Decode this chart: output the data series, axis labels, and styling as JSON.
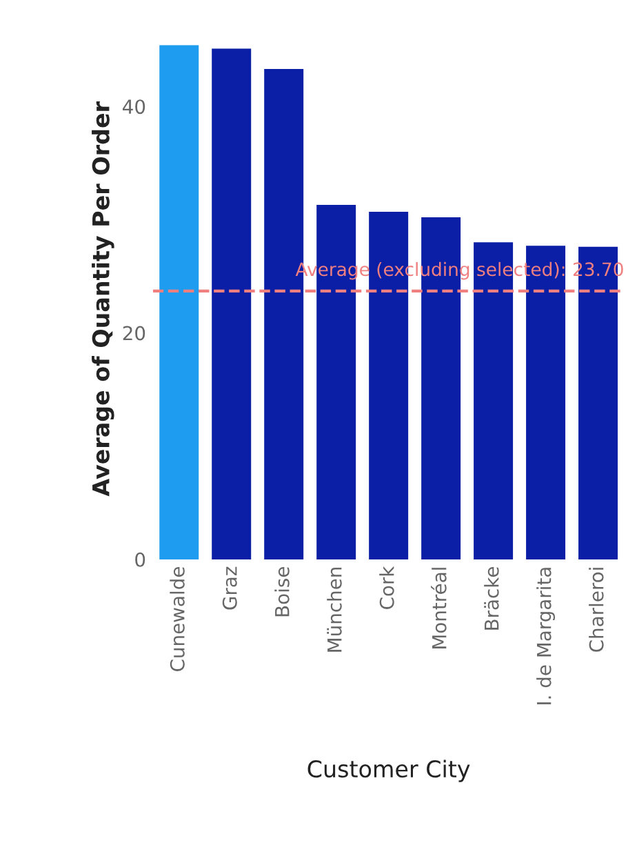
{
  "chart_data": {
    "type": "bar",
    "xlabel": "Customer City",
    "ylabel": "Average of Quantity Per Order",
    "categories": [
      "Cunewalde",
      "Graz",
      "Boise",
      "München",
      "Cork",
      "Montréal",
      "Bräcke",
      "I. de Margarita",
      "Charleroi"
    ],
    "values": [
      45.4,
      45.1,
      43.3,
      31.3,
      30.7,
      30.2,
      28.0,
      27.7,
      27.6
    ],
    "colors": [
      "#1e9cf0",
      "#0b1fa6",
      "#0b1fa6",
      "#0b1fa6",
      "#0b1fa6",
      "#0b1fa6",
      "#0b1fa6",
      "#0b1fa6",
      "#0b1fa6"
    ],
    "ylim": [
      0,
      46
    ],
    "yticks": [
      0,
      20,
      40
    ],
    "grid": false,
    "ref_lines": [
      {
        "axis": "y",
        "value": 23.7,
        "label": "Average (excluding selected): 23.70",
        "color": "#f08080",
        "line_style": "dashed"
      }
    ]
  }
}
